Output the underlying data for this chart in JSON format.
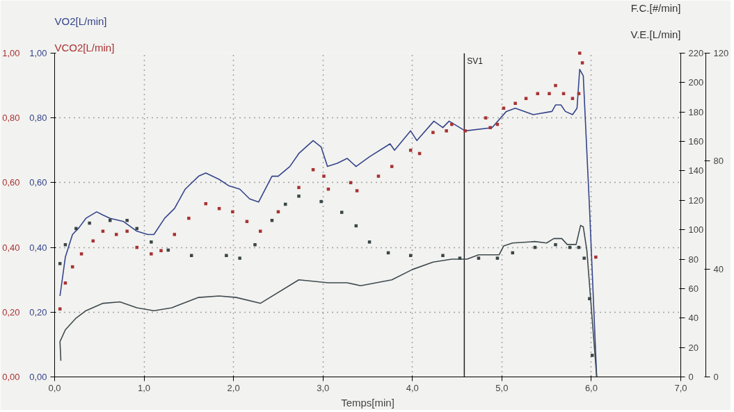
{
  "chart_data": {
    "type": "line",
    "xlabel": "Temps[min]",
    "ylabel": "VO2[L/min]",
    "y2label": "F.C.[#/min]",
    "y3label": "V.E.[L/min]",
    "xlim": [
      0,
      7
    ],
    "xticks": [
      {
        "value": 0,
        "label": "0,0"
      },
      {
        "value": 1,
        "label": "1,0"
      },
      {
        "value": 2,
        "label": "2,0"
      },
      {
        "value": 3,
        "label": "3,0"
      },
      {
        "value": 4,
        "label": "4,0"
      },
      {
        "value": 5,
        "label": "5,0"
      },
      {
        "value": 6,
        "label": "6,0"
      },
      {
        "value": 7,
        "label": "7,0"
      }
    ],
    "ylim": [
      0,
      1
    ],
    "yticks": [
      {
        "value": 0,
        "label": "0,00"
      },
      {
        "value": 0.2,
        "label": "0,20"
      },
      {
        "value": 0.4,
        "label": "0,40"
      },
      {
        "value": 0.6,
        "label": "0,60"
      },
      {
        "value": 0.8,
        "label": "0,80"
      },
      {
        "value": 1,
        "label": "1,00"
      }
    ],
    "y2lim": [
      0,
      220
    ],
    "y2ticks": [
      0,
      20,
      40,
      60,
      80,
      100,
      120,
      140,
      160,
      180,
      200,
      220
    ],
    "y3lim": [
      0,
      120
    ],
    "y3ticks": [
      0,
      40,
      80,
      120
    ],
    "grid": true,
    "ref_lines": [
      {
        "axis": "x",
        "value": 4.58,
        "label": "SV1",
        "color": "#222222"
      }
    ],
    "series": [
      {
        "axis": "y",
        "color": "#34448a",
        "x": [
          0.06,
          0.12,
          0.2,
          0.27,
          0.35,
          0.47,
          0.54,
          0.62,
          0.77,
          0.92,
          1.04,
          1.11,
          1.23,
          1.34,
          1.46,
          1.61,
          1.69,
          1.84,
          1.95,
          2.07,
          2.18,
          2.28,
          2.43,
          2.5,
          2.63,
          2.73,
          2.89,
          2.98,
          3.05,
          3.16,
          3.27,
          3.37,
          3.52,
          3.75,
          3.8,
          3.98,
          4.05,
          4.24,
          4.34,
          4.41,
          4.59,
          4.89,
          5.05,
          5.15,
          5.35,
          5.56,
          5.6,
          5.66,
          5.71,
          5.79,
          5.84,
          5.87,
          5.91,
          5.98,
          6.06
        ],
        "values": [
          0.25,
          0.37,
          0.44,
          0.46,
          0.49,
          0.51,
          0.5,
          0.49,
          0.48,
          0.45,
          0.44,
          0.44,
          0.49,
          0.52,
          0.58,
          0.62,
          0.63,
          0.61,
          0.59,
          0.58,
          0.55,
          0.54,
          0.62,
          0.62,
          0.65,
          0.69,
          0.73,
          0.71,
          0.65,
          0.66,
          0.675,
          0.65,
          0.68,
          0.72,
          0.7,
          0.76,
          0.73,
          0.79,
          0.77,
          0.79,
          0.76,
          0.77,
          0.82,
          0.83,
          0.81,
          0.82,
          0.84,
          0.84,
          0.82,
          0.81,
          0.83,
          0.95,
          0.93,
          0.52,
          0
        ]
      },
      {
        "type": "scatter",
        "axis": "y",
        "name": "VCO2[L/min]",
        "color": "#a83232",
        "marker": "square",
        "x": [
          0.06,
          0.12,
          0.2,
          0.3,
          0.43,
          0.54,
          0.69,
          0.81,
          0.92,
          1.08,
          1.19,
          1.34,
          1.5,
          1.69,
          1.84,
          1.99,
          2.15,
          2.3,
          2.5,
          2.73,
          2.89,
          3.01,
          3.06,
          3.31,
          3.38,
          3.62,
          3.77,
          3.98,
          4.08,
          4.23,
          4.38,
          4.44,
          4.59,
          4.82,
          4.87,
          4.95,
          5.02,
          5.15,
          5.27,
          5.4,
          5.53,
          5.6,
          5.69,
          5.79,
          5.86,
          5.87,
          5.9,
          6.05
        ],
        "values": [
          0.21,
          0.29,
          0.34,
          0.38,
          0.42,
          0.45,
          0.44,
          0.45,
          0.4,
          0.38,
          0.39,
          0.44,
          0.49,
          0.535,
          0.52,
          0.51,
          0.48,
          0.45,
          0.51,
          0.585,
          0.64,
          0.62,
          0.58,
          0.6,
          0.575,
          0.62,
          0.65,
          0.7,
          0.69,
          0.755,
          0.76,
          0.78,
          0.76,
          0.8,
          0.77,
          0.78,
          0.83,
          0.845,
          0.86,
          0.875,
          0.875,
          0.9,
          0.875,
          0.86,
          0.875,
          1.0,
          0.97,
          0.37
        ]
      },
      {
        "type": "line",
        "axis": "y2",
        "color": "#3e4a4e",
        "x": [
          0.07,
          0.06,
          0.12,
          0.24,
          0.35,
          0.54,
          0.73,
          0.92,
          1.11,
          1.31,
          1.61,
          1.84,
          2.03,
          2.3,
          2.73,
          3.06,
          3.27,
          3.42,
          3.77,
          4.0,
          4.23,
          4.44,
          4.61,
          4.74,
          4.97,
          5.02,
          5.12,
          5.37,
          5.5,
          5.58,
          5.67,
          5.73,
          5.83,
          5.88,
          5.91,
          5.95,
          6.06
        ],
        "values": [
          11,
          24,
          32,
          40,
          45,
          50,
          51,
          47,
          45,
          47,
          54,
          55,
          54,
          50,
          66,
          64,
          64,
          62,
          66,
          73,
          78,
          80,
          80,
          83,
          83,
          89,
          91,
          92,
          91,
          94,
          94,
          90,
          90,
          103,
          102,
          86,
          0
        ]
      },
      {
        "type": "scatter",
        "axis": "y3",
        "color": "#3a4646",
        "marker": "square",
        "x": [
          0.06,
          0.12,
          0.24,
          0.39,
          0.62,
          0.81,
          0.92,
          1.08,
          1.27,
          1.53,
          1.92,
          2.07,
          2.24,
          2.43,
          2.58,
          2.73,
          2.98,
          3.21,
          3.37,
          3.52,
          3.73,
          3.98,
          4.34,
          4.53,
          4.74,
          4.95,
          5.12,
          5.37,
          5.6,
          5.76,
          5.86,
          5.92,
          5.98,
          6.01
        ],
        "values": [
          42,
          49,
          55,
          57,
          58,
          58,
          55,
          50,
          47,
          45,
          45,
          44,
          49,
          58,
          64,
          67,
          65,
          61,
          56,
          50,
          46,
          45,
          45,
          44,
          44,
          44,
          46,
          48,
          49,
          48,
          48,
          44,
          29,
          8
        ]
      }
    ]
  }
}
